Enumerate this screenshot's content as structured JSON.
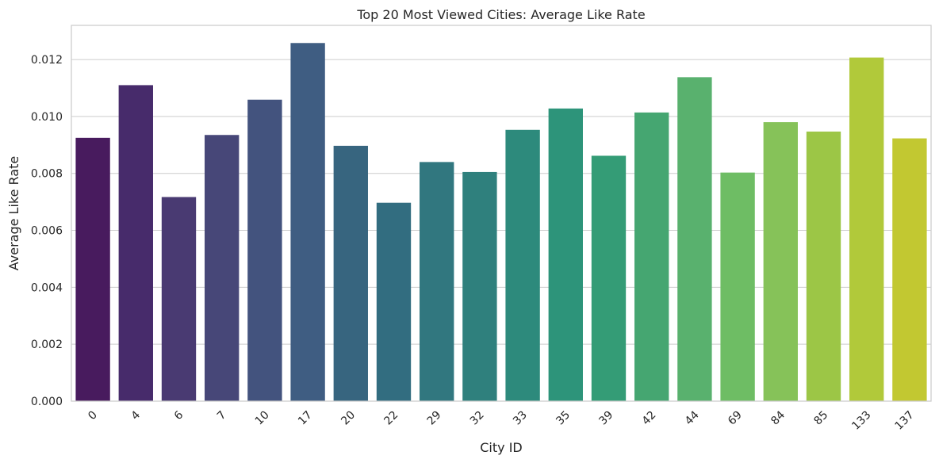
{
  "chart_data": {
    "type": "bar",
    "title": "Top 20 Most Viewed Cities: Average Like Rate",
    "xlabel": "City ID",
    "ylabel": "Average Like Rate",
    "ylim": [
      0,
      0.0132
    ],
    "yticks": [
      "0.000",
      "0.002",
      "0.004",
      "0.006",
      "0.008",
      "0.010",
      "0.012"
    ],
    "categories": [
      "0",
      "4",
      "6",
      "7",
      "10",
      "17",
      "20",
      "22",
      "29",
      "32",
      "33",
      "35",
      "39",
      "42",
      "44",
      "69",
      "84",
      "85",
      "133",
      "137"
    ],
    "values": [
      0.00925,
      0.0111,
      0.00717,
      0.00935,
      0.01059,
      0.01258,
      0.00897,
      0.00697,
      0.0084,
      0.00805,
      0.00953,
      0.01028,
      0.00862,
      0.01014,
      0.01138,
      0.00803,
      0.0098,
      0.00947,
      0.01207,
      0.00923
    ],
    "colors": [
      "#481b5e",
      "#472b6b",
      "#493a72",
      "#474778",
      "#43537e",
      "#3f5d82",
      "#37657f",
      "#326d80",
      "#31777f",
      "#2f807d",
      "#2d8a7c",
      "#2d947a",
      "#349c76",
      "#45a671",
      "#59b16e",
      "#6ebd64",
      "#86c259",
      "#9cc646",
      "#b1c93a",
      "#c2c831"
    ],
    "grid": true,
    "x_tick_rotation": -45
  }
}
